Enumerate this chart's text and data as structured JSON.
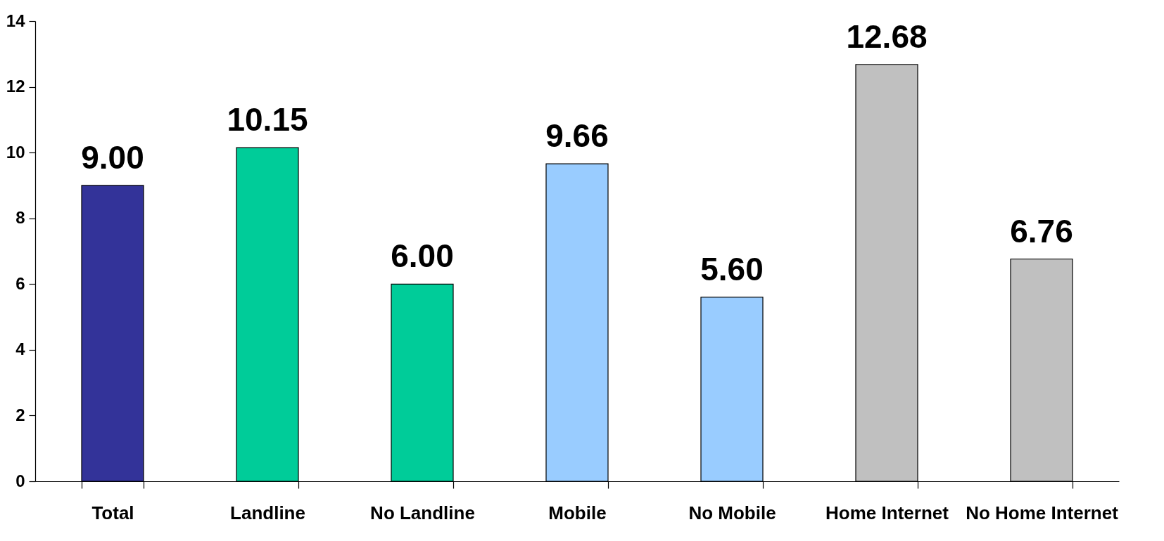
{
  "chart_data": {
    "type": "bar",
    "categories": [
      "Total",
      "Landline",
      "No Landline",
      "Mobile",
      "No Mobile",
      "Home Internet",
      "No Home Internet"
    ],
    "values": [
      9.0,
      10.15,
      6.0,
      9.66,
      5.6,
      12.68,
      6.76
    ],
    "value_labels": [
      "9.00",
      "10.15",
      "6.00",
      "9.66",
      "5.60",
      "12.68",
      "6.76"
    ],
    "colors": [
      "#333399",
      "#00cc99",
      "#00cc99",
      "#99ccff",
      "#99ccff",
      "#c0c0c0",
      "#c0c0c0"
    ],
    "ylim": [
      0,
      14
    ],
    "yticks": [
      0,
      2,
      4,
      6,
      8,
      10,
      12,
      14
    ],
    "grid": false
  }
}
